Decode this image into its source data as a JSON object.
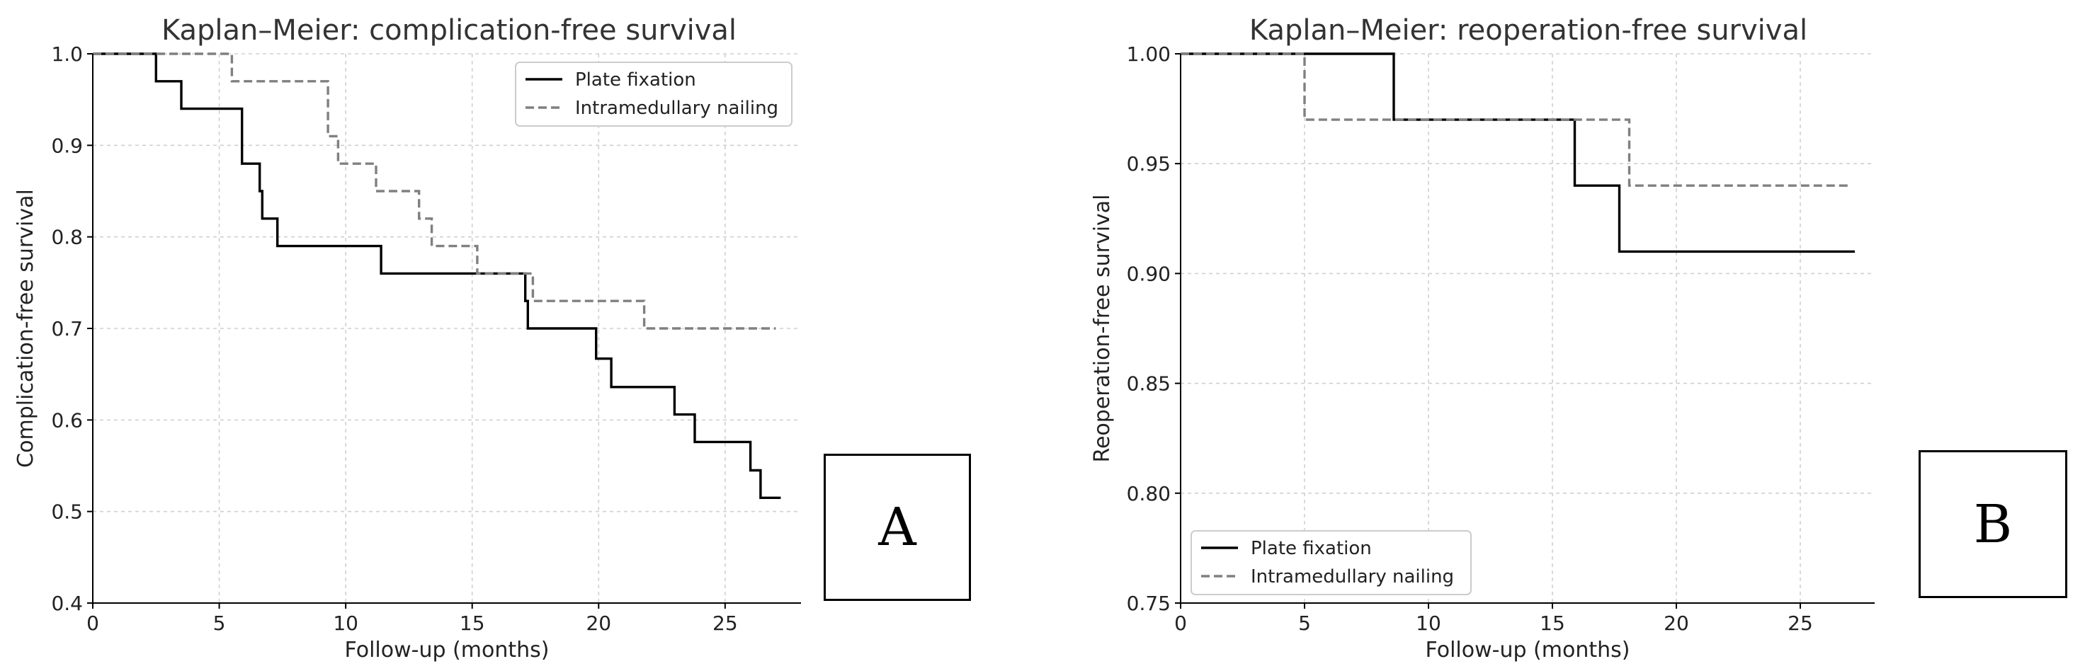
{
  "chart_data": [
    {
      "type": "line",
      "step": true,
      "title": "Kaplan–Meier: complication-free survival",
      "xlabel": "Follow-up (months)",
      "ylabel": "Complication-free survival",
      "xlim": [
        0,
        28
      ],
      "ylim": [
        0.4,
        1.0
      ],
      "xticks": [
        0,
        5,
        10,
        15,
        20,
        25
      ],
      "xtick_labels": [
        "0",
        "5",
        "10",
        "15",
        "20",
        "25"
      ],
      "yticks": [
        0.4,
        0.5,
        0.6,
        0.7,
        0.8,
        0.9,
        1.0
      ],
      "ytick_labels": [
        "0.4",
        "0.5",
        "0.6",
        "0.7",
        "0.8",
        "0.9",
        "1.0"
      ],
      "grid": true,
      "legend_position": "top-right",
      "series": [
        {
          "name": "Plate fixation",
          "color": "#000000",
          "dash": "solid",
          "points": [
            [
              0,
              1.0
            ],
            [
              2.5,
              1.0
            ],
            [
              2.5,
              0.97
            ],
            [
              3.5,
              0.97
            ],
            [
              3.5,
              0.94
            ],
            [
              5.9,
              0.94
            ],
            [
              5.9,
              0.88
            ],
            [
              6.6,
              0.88
            ],
            [
              6.6,
              0.85
            ],
            [
              6.7,
              0.85
            ],
            [
              6.7,
              0.82
            ],
            [
              7.3,
              0.82
            ],
            [
              7.3,
              0.79
            ],
            [
              11.4,
              0.79
            ],
            [
              11.4,
              0.76
            ],
            [
              17.1,
              0.76
            ],
            [
              17.1,
              0.73
            ],
            [
              17.2,
              0.73
            ],
            [
              17.2,
              0.7
            ],
            [
              19.9,
              0.7
            ],
            [
              19.9,
              0.667
            ],
            [
              20.5,
              0.667
            ],
            [
              20.5,
              0.636
            ],
            [
              23.0,
              0.636
            ],
            [
              23.0,
              0.606
            ],
            [
              23.8,
              0.606
            ],
            [
              23.8,
              0.576
            ],
            [
              26.0,
              0.576
            ],
            [
              26.0,
              0.545
            ],
            [
              26.4,
              0.545
            ],
            [
              26.4,
              0.515
            ],
            [
              27.2,
              0.515
            ]
          ]
        },
        {
          "name": "Intramedullary nailing",
          "color": "#808080",
          "dash": "dashed",
          "points": [
            [
              0,
              1.0
            ],
            [
              5.5,
              1.0
            ],
            [
              5.5,
              0.97
            ],
            [
              9.3,
              0.97
            ],
            [
              9.3,
              0.91
            ],
            [
              9.7,
              0.91
            ],
            [
              9.7,
              0.88
            ],
            [
              11.2,
              0.88
            ],
            [
              11.2,
              0.85
            ],
            [
              12.9,
              0.85
            ],
            [
              12.9,
              0.82
            ],
            [
              13.4,
              0.82
            ],
            [
              13.4,
              0.79
            ],
            [
              15.2,
              0.79
            ],
            [
              15.2,
              0.76
            ],
            [
              17.4,
              0.76
            ],
            [
              17.4,
              0.73
            ],
            [
              21.8,
              0.73
            ],
            [
              21.8,
              0.7
            ],
            [
              27.0,
              0.7
            ]
          ]
        }
      ]
    },
    {
      "type": "line",
      "step": true,
      "title": "Kaplan–Meier: reoperation-free survival",
      "xlabel": "Follow-up (months)",
      "ylabel": "Reoperation-free survival",
      "xlim": [
        0,
        28
      ],
      "ylim": [
        0.75,
        1.0
      ],
      "xticks": [
        0,
        5,
        10,
        15,
        20,
        25
      ],
      "xtick_labels": [
        "0",
        "5",
        "10",
        "15",
        "20",
        "25"
      ],
      "yticks": [
        0.75,
        0.8,
        0.85,
        0.9,
        0.95,
        1.0
      ],
      "ytick_labels": [
        "0.75",
        "0.80",
        "0.85",
        "0.90",
        "0.95",
        "1.00"
      ],
      "grid": true,
      "legend_position": "bottom-left",
      "series": [
        {
          "name": "Plate fixation",
          "color": "#000000",
          "dash": "solid",
          "points": [
            [
              0,
              1.0
            ],
            [
              8.6,
              1.0
            ],
            [
              8.6,
              0.97
            ],
            [
              15.9,
              0.97
            ],
            [
              15.9,
              0.94
            ],
            [
              17.7,
              0.94
            ],
            [
              17.7,
              0.91
            ],
            [
              27.2,
              0.91
            ]
          ]
        },
        {
          "name": "Intramedullary nailing",
          "color": "#808080",
          "dash": "dashed",
          "points": [
            [
              0,
              1.0
            ],
            [
              5.0,
              1.0
            ],
            [
              5.0,
              0.97
            ],
            [
              18.1,
              0.97
            ],
            [
              18.1,
              0.94
            ],
            [
              27.0,
              0.94
            ]
          ]
        }
      ]
    }
  ],
  "panels": [
    {
      "letter": "A"
    },
    {
      "letter": "B"
    }
  ]
}
